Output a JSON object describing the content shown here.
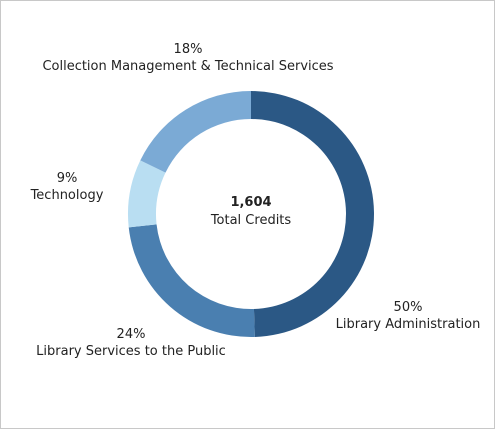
{
  "chart_data": {
    "type": "donut",
    "categories": [
      "Library Administration",
      "Library Services to the Public",
      "Technology",
      "Collection Management & Technical Services"
    ],
    "values": [
      50,
      24,
      9,
      18
    ],
    "value_labels": [
      "50%",
      "24%",
      "9%",
      "18%"
    ],
    "colors": [
      "#2b5885",
      "#4a7fb0",
      "#b9def2",
      "#7baad5"
    ],
    "total": {
      "value": 1604,
      "label": "1,604"
    },
    "total_caption": "Total Credits"
  }
}
